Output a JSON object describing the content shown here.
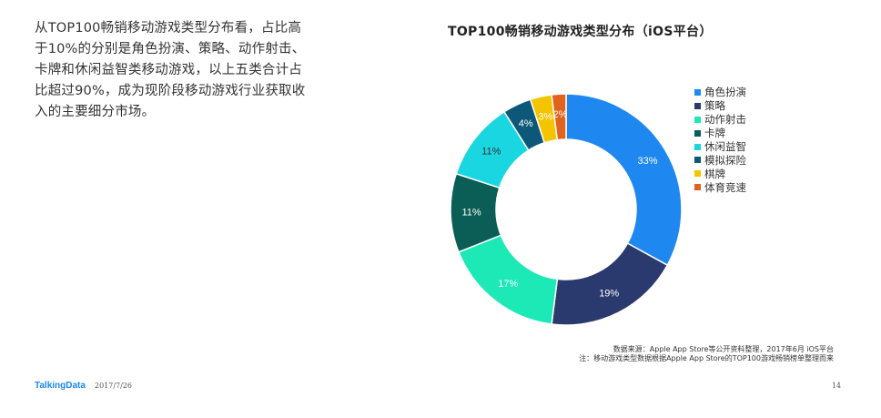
{
  "description": "从TOP100畅销移动游戏类型分布看，占比高于10%的分别是角色扮演、策略、动作射击、卡牌和休闲益智类移动游戏，以上五类合计占比超过90%，成为现阶段移动游戏行业获取收入的主要细分市场。",
  "source_lines": [
    "数据来源：Apple App Store等公开资料整理，2017年6月 iOS平台",
    "注：移动游戏类型数据根据Apple App Store的TOP100游戏畅销榜单整理而来"
  ],
  "footer": {
    "brand": "TalkingData",
    "date": "2017/7/26",
    "page": "14"
  },
  "chart_data": {
    "type": "pie",
    "variant": "donut",
    "title": "TOP100畅销移动游戏类型分布（iOS平台）",
    "legend_position": "right",
    "categories": [
      "角色扮演",
      "策略",
      "动作射击",
      "卡牌",
      "休闲益智",
      "模拟探险",
      "棋牌",
      "体育竞速"
    ],
    "values": [
      33,
      19,
      17,
      11,
      11,
      4,
      3,
      2
    ],
    "labels": [
      "33%",
      "19%",
      "17%",
      "11%",
      "11%",
      "4%",
      "3%",
      "2%"
    ],
    "colors": [
      "#1e88f0",
      "#2b3a6e",
      "#1de9b6",
      "#0b5e55",
      "#1ad6e0",
      "#0d5778",
      "#f5c400",
      "#e0621c"
    ]
  }
}
